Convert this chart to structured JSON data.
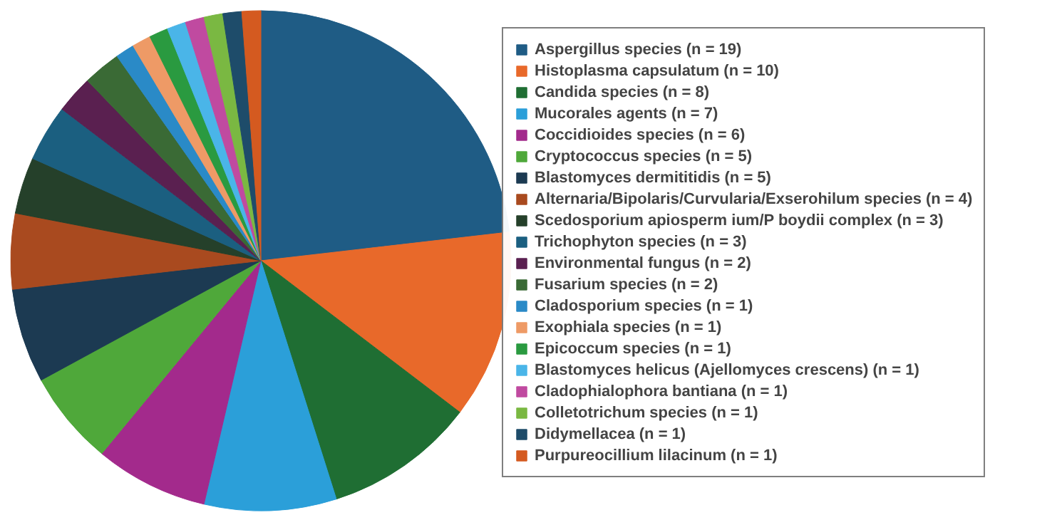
{
  "chart_data": {
    "type": "pie",
    "categories": [
      "Aspergillus species (n = 19)",
      "Histoplasma capsulatum (n = 10)",
      "Candida species (n = 8)",
      "Mucorales agents (n = 7)",
      "Coccidioides species (n = 6)",
      "Cryptococcus species (n = 5)",
      "Blastomyces dermititidis (n = 5)",
      "Alternaria/Bipolaris/Curvularia/Exserohilum species (n = 4)",
      "Scedosporium apiosperm ium/P boydii complex (n = 3)",
      "Trichophyton species (n = 3)",
      "Environmental fungus (n = 2)",
      "Fusarium species (n = 2)",
      "Cladosporium species (n = 1)",
      "Exophiala species (n = 1)",
      "Epicoccum species (n = 1)",
      "Blastomyces helicus (Ajellomyces crescens) (n = 1)",
      "Cladophialophora bantiana (n = 1)",
      "Colletotrichum species (n = 1)",
      "Didymellacea (n = 1)",
      "Purpureocillium lilacinum (n = 1)"
    ],
    "values": [
      19,
      10,
      8,
      7,
      6,
      5,
      5,
      4,
      3,
      3,
      2,
      2,
      1,
      1,
      1,
      1,
      1,
      1,
      1,
      1
    ],
    "colors": [
      "#1f5c85",
      "#e8692a",
      "#1f6e33",
      "#2b9fd9",
      "#a32a8c",
      "#4fa83a",
      "#1c3a52",
      "#a94a1f",
      "#25402a",
      "#1b5f80",
      "#5a2050",
      "#3a6a35",
      "#2a8ac7",
      "#ee9a66",
      "#2a9a40",
      "#4ab5e8",
      "#c04aa0",
      "#7ab842",
      "#1e4c6a",
      "#d45a20"
    ],
    "legend": "right"
  }
}
